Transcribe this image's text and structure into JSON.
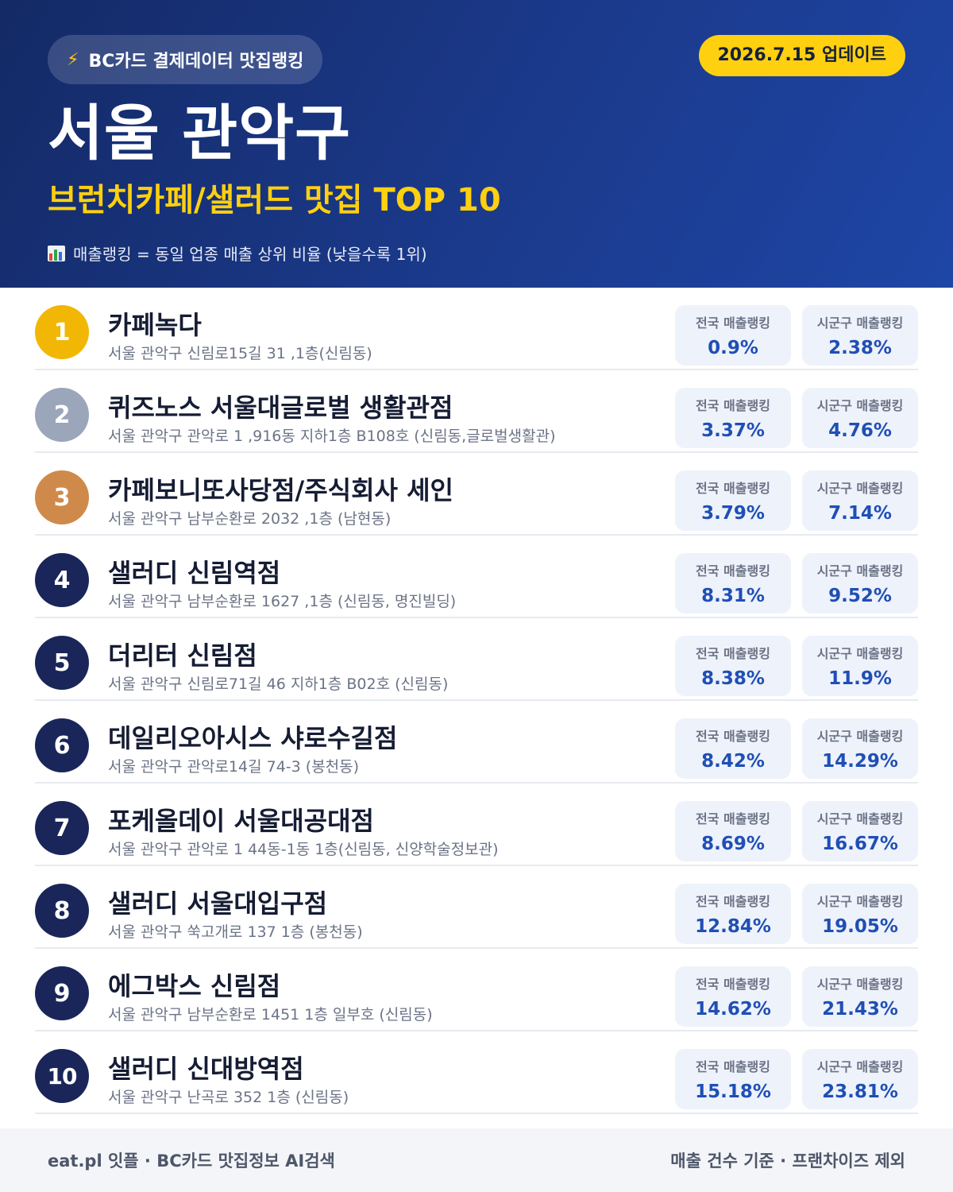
{
  "header": {
    "source_icon": "lightning-bolt-icon",
    "source_label": "BC카드 결제데이터 맛집랭킹",
    "update_label": "2026.7.15 업데이트",
    "title": "서울 관악구",
    "subtitle": "브런치카페/샐러드 맛집 TOP 10",
    "note_icon": "bar-chart-icon",
    "note": "매출랭킹 = 동일 업종 매출 상위 비율 (낮을수록 1위)"
  },
  "colors": {
    "header_bg": "#1b3a8c",
    "accent_yellow": "#ffd00f",
    "rank_gold": "#f2b705",
    "rank_silver": "#9ba6bb",
    "rank_bronze": "#cf8a4b",
    "rank_default": "#1a2659",
    "value_blue": "#1f4fb5"
  },
  "stat_labels": {
    "national": "전국 매출랭킹",
    "local": "시군구 매출랭킹"
  },
  "restaurants": [
    {
      "rank": "1",
      "name": "카페녹다",
      "address": "서울 관악구 신림로15길 31 ,1층(신림동)",
      "national": "0.9%",
      "local": "2.38%"
    },
    {
      "rank": "2",
      "name": "퀴즈노스 서울대글로벌 생활관점",
      "address": "서울 관악구 관악로 1 ,916동 지하1층 B108호 (신림동,글로벌생활관)",
      "national": "3.37%",
      "local": "4.76%"
    },
    {
      "rank": "3",
      "name": "카페보니또사당점/주식회사 세인",
      "address": "서울 관악구 남부순환로 2032 ,1층 (남현동)",
      "national": "3.79%",
      "local": "7.14%"
    },
    {
      "rank": "4",
      "name": "샐러디 신림역점",
      "address": "서울 관악구 남부순환로 1627 ,1층 (신림동, 명진빌딩)",
      "national": "8.31%",
      "local": "9.52%"
    },
    {
      "rank": "5",
      "name": "더리터 신림점",
      "address": "서울 관악구 신림로71길 46 지하1층 B02호 (신림동)",
      "national": "8.38%",
      "local": "11.9%"
    },
    {
      "rank": "6",
      "name": "데일리오아시스 샤로수길점",
      "address": "서울 관악구 관악로14길 74-3 (봉천동)",
      "national": "8.42%",
      "local": "14.29%"
    },
    {
      "rank": "7",
      "name": "포케올데이 서울대공대점",
      "address": "서울 관악구 관악로 1 44동-1동 1층(신림동, 신양학술정보관)",
      "national": "8.69%",
      "local": "16.67%"
    },
    {
      "rank": "8",
      "name": "샐러디 서울대입구점",
      "address": "서울 관악구 쑥고개로 137 1층 (봉천동)",
      "national": "12.84%",
      "local": "19.05%"
    },
    {
      "rank": "9",
      "name": "에그박스 신림점",
      "address": "서울 관악구 남부순환로 1451 1층 일부호 (신림동)",
      "national": "14.62%",
      "local": "21.43%"
    },
    {
      "rank": "10",
      "name": "샐러디 신대방역점",
      "address": "서울 관악구 난곡로 352 1층 (신림동)",
      "national": "15.18%",
      "local": "23.81%"
    }
  ],
  "footer": {
    "left": "eat.pl 잇플 · BC카드 맛집정보 AI검색",
    "right": "매출 건수 기준 · 프랜차이즈 제외"
  }
}
